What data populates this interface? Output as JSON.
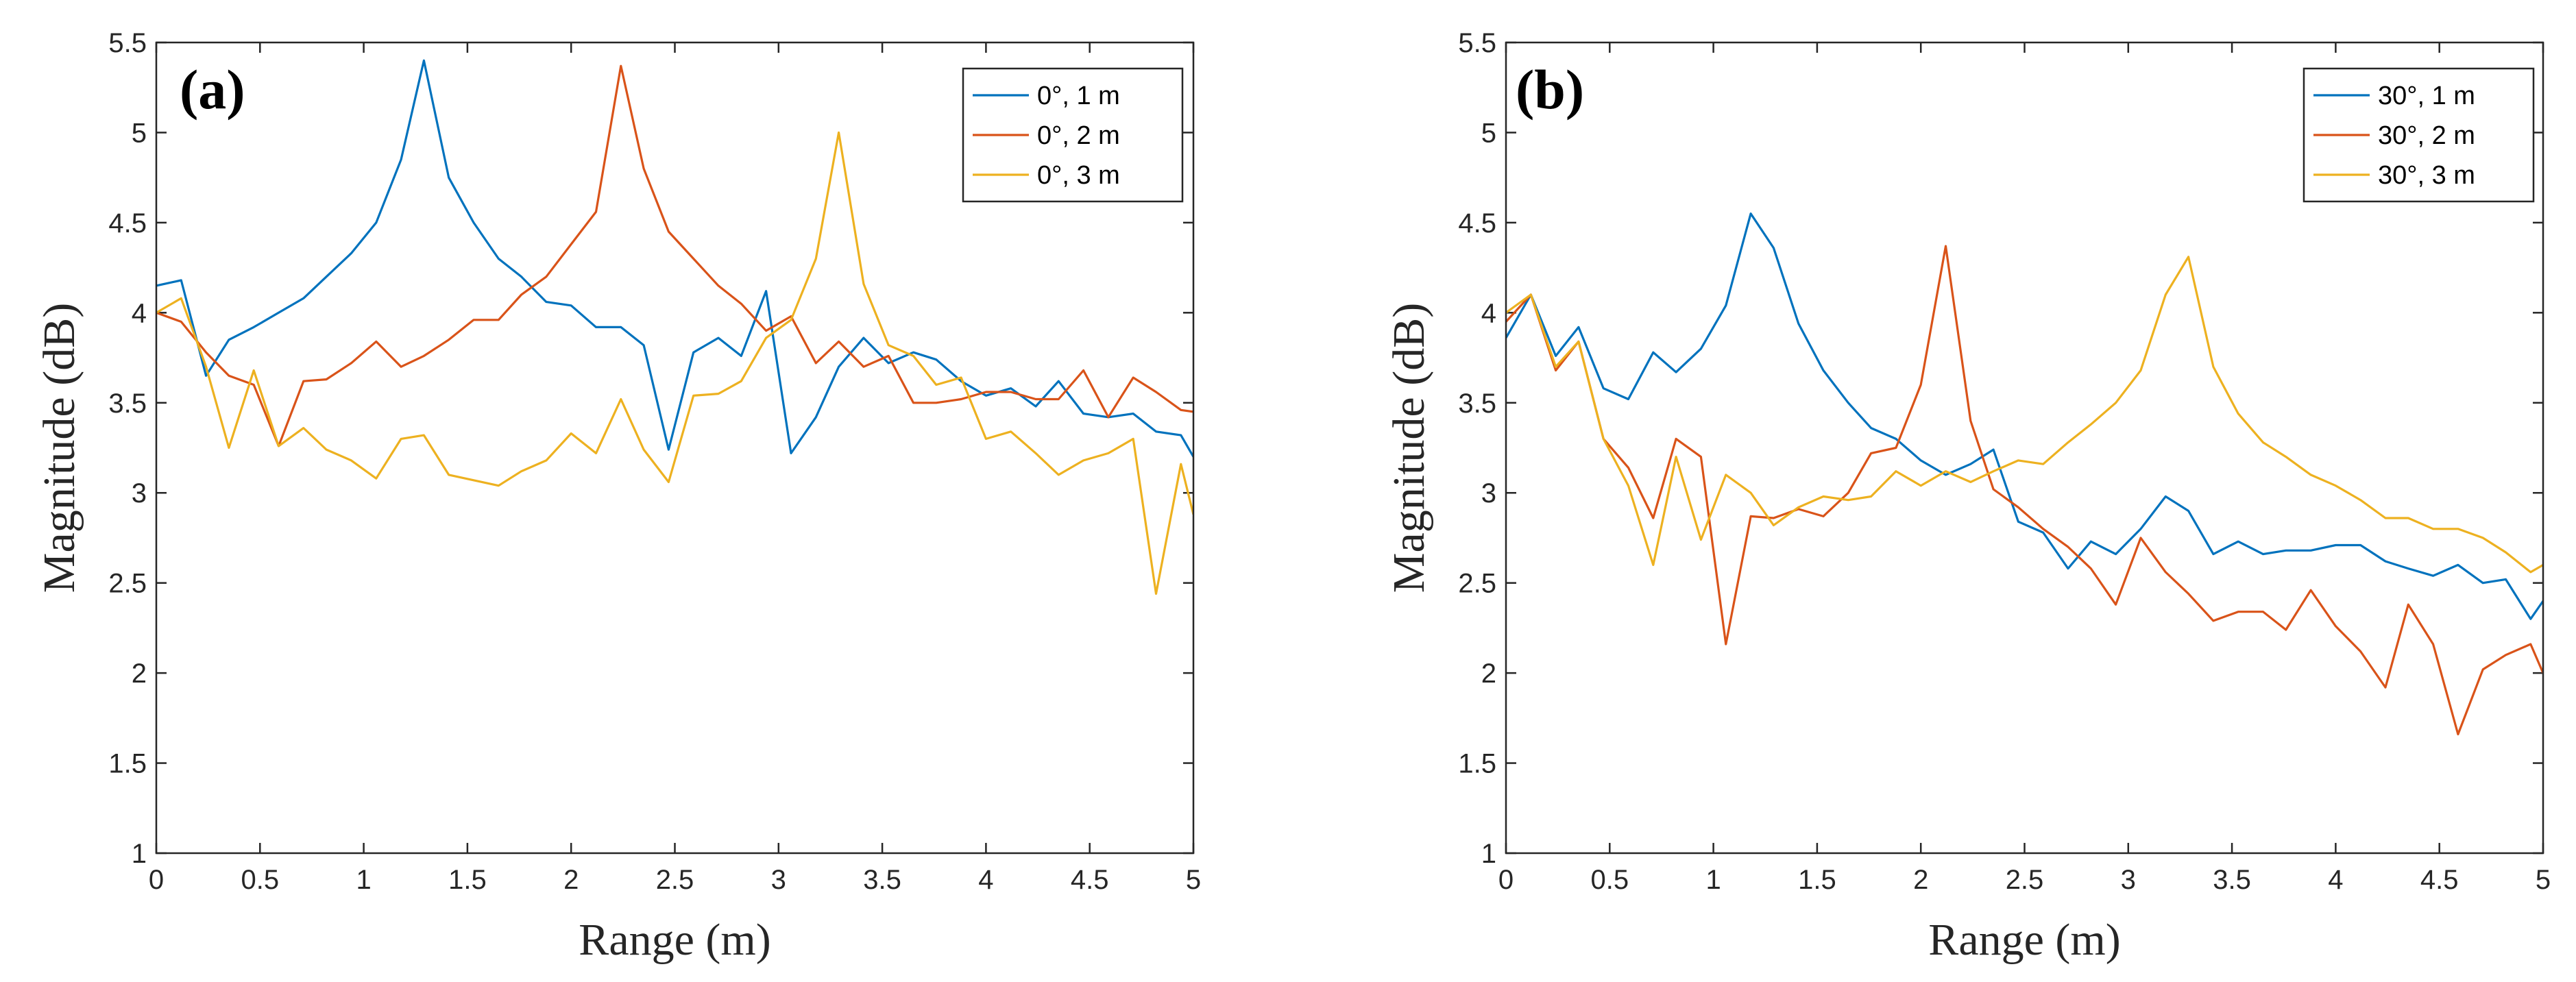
{
  "chart_data": [
    {
      "type": "line",
      "panel_label": "(a)",
      "xlabel": "Range (m)",
      "ylabel": "Magnitude (dB)",
      "xlim": [
        0,
        5
      ],
      "ylim": [
        1,
        5.5
      ],
      "xticks": [
        "0",
        "0.5",
        "1",
        "1.5",
        "2",
        "2.5",
        "3",
        "3.5",
        "4",
        "4.5",
        "5"
      ],
      "yticks": [
        "1",
        "1.5",
        "2",
        "2.5",
        "3",
        "3.5",
        "4",
        "4.5",
        "5",
        "5.5"
      ],
      "legend_position": "top-right",
      "series": [
        {
          "name": "0°, 1 m",
          "color": "#0072BD",
          "x": [
            0,
            0.12,
            0.24,
            0.35,
            0.47,
            0.59,
            0.71,
            0.82,
            0.94,
            1.06,
            1.18,
            1.29,
            1.41,
            1.53,
            1.65,
            1.76,
            1.88,
            2.0,
            2.12,
            2.24,
            2.35,
            2.47,
            2.59,
            2.71,
            2.82,
            2.94,
            3.06,
            3.18,
            3.29,
            3.41,
            3.53,
            3.65,
            3.76,
            3.88,
            4.0,
            4.12,
            4.24,
            4.35,
            4.47,
            4.59,
            4.71,
            4.82,
            4.94,
            5.0
          ],
          "y": [
            4.15,
            4.18,
            3.65,
            3.85,
            3.92,
            4.0,
            4.08,
            4.2,
            4.33,
            4.5,
            4.85,
            5.4,
            4.75,
            4.5,
            4.3,
            4.2,
            4.06,
            4.04,
            3.92,
            3.92,
            3.82,
            3.24,
            3.78,
            3.86,
            3.76,
            4.12,
            3.22,
            3.42,
            3.7,
            3.86,
            3.72,
            3.78,
            3.74,
            3.62,
            3.54,
            3.58,
            3.48,
            3.62,
            3.44,
            3.42,
            3.44,
            3.34,
            3.32,
            3.2
          ]
        },
        {
          "name": "0°, 2 m",
          "color": "#D95319",
          "x": [
            0,
            0.12,
            0.24,
            0.35,
            0.47,
            0.59,
            0.71,
            0.82,
            0.94,
            1.06,
            1.18,
            1.29,
            1.41,
            1.53,
            1.65,
            1.76,
            1.88,
            2.0,
            2.12,
            2.24,
            2.35,
            2.47,
            2.59,
            2.71,
            2.82,
            2.94,
            3.06,
            3.18,
            3.29,
            3.41,
            3.53,
            3.65,
            3.76,
            3.88,
            4.0,
            4.12,
            4.24,
            4.35,
            4.47,
            4.59,
            4.71,
            4.82,
            4.94,
            5.0
          ],
          "y": [
            4.0,
            3.95,
            3.78,
            3.65,
            3.6,
            3.26,
            3.62,
            3.63,
            3.72,
            3.84,
            3.7,
            3.76,
            3.85,
            3.96,
            3.96,
            4.1,
            4.2,
            4.38,
            4.56,
            5.37,
            4.8,
            4.45,
            4.3,
            4.15,
            4.05,
            3.9,
            3.98,
            3.72,
            3.84,
            3.7,
            3.76,
            3.5,
            3.5,
            3.52,
            3.56,
            3.56,
            3.52,
            3.52,
            3.68,
            3.42,
            3.64,
            3.56,
            3.46,
            3.45
          ]
        },
        {
          "name": "0°, 3 m",
          "color": "#EDB120",
          "x": [
            0,
            0.12,
            0.24,
            0.35,
            0.47,
            0.59,
            0.71,
            0.82,
            0.94,
            1.06,
            1.18,
            1.29,
            1.41,
            1.53,
            1.65,
            1.76,
            1.88,
            2.0,
            2.12,
            2.24,
            2.35,
            2.47,
            2.59,
            2.71,
            2.82,
            2.94,
            3.06,
            3.18,
            3.29,
            3.41,
            3.53,
            3.65,
            3.76,
            3.88,
            4.0,
            4.12,
            4.24,
            4.35,
            4.47,
            4.59,
            4.71,
            4.82,
            4.94,
            5.0
          ],
          "y": [
            4.0,
            4.08,
            3.7,
            3.25,
            3.68,
            3.26,
            3.36,
            3.24,
            3.18,
            3.08,
            3.3,
            3.32,
            3.1,
            3.07,
            3.04,
            3.12,
            3.18,
            3.33,
            3.22,
            3.52,
            3.24,
            3.06,
            3.54,
            3.55,
            3.62,
            3.86,
            3.96,
            4.3,
            5.0,
            4.16,
            3.82,
            3.76,
            3.6,
            3.64,
            3.3,
            3.34,
            3.22,
            3.1,
            3.18,
            3.22,
            3.3,
            2.44,
            3.16,
            2.88
          ]
        }
      ]
    },
    {
      "type": "line",
      "panel_label": "(b)",
      "xlabel": "Range (m)",
      "ylabel": "Magnitude (dB)",
      "xlim": [
        0,
        5
      ],
      "ylim": [
        1,
        5.5
      ],
      "xticks": [
        "0",
        "0.5",
        "1",
        "1.5",
        "2",
        "2.5",
        "3",
        "3.5",
        "4",
        "4.5",
        "5"
      ],
      "yticks": [
        "1",
        "1.5",
        "2",
        "2.5",
        "3",
        "3.5",
        "4",
        "4.5",
        "5",
        "5.5"
      ],
      "legend_position": "top-right",
      "series": [
        {
          "name": "30°, 1 m",
          "color": "#0072BD",
          "x": [
            0,
            0.12,
            0.24,
            0.35,
            0.47,
            0.59,
            0.71,
            0.82,
            0.94,
            1.06,
            1.18,
            1.29,
            1.41,
            1.53,
            1.65,
            1.76,
            1.88,
            2.0,
            2.12,
            2.24,
            2.35,
            2.47,
            2.59,
            2.71,
            2.82,
            2.94,
            3.06,
            3.18,
            3.29,
            3.41,
            3.53,
            3.65,
            3.76,
            3.88,
            4.0,
            4.12,
            4.24,
            4.35,
            4.47,
            4.59,
            4.71,
            4.82,
            4.94,
            5.0
          ],
          "y": [
            3.86,
            4.1,
            3.76,
            3.92,
            3.58,
            3.52,
            3.78,
            3.67,
            3.8,
            4.04,
            4.55,
            4.36,
            3.94,
            3.68,
            3.5,
            3.36,
            3.3,
            3.18,
            3.1,
            3.16,
            3.24,
            2.84,
            2.78,
            2.58,
            2.73,
            2.66,
            2.8,
            2.98,
            2.9,
            2.66,
            2.73,
            2.66,
            2.68,
            2.68,
            2.71,
            2.71,
            2.62,
            2.58,
            2.54,
            2.6,
            2.5,
            2.52,
            2.3,
            2.4
          ]
        },
        {
          "name": "30°, 2 m",
          "color": "#D95319",
          "x": [
            0,
            0.12,
            0.24,
            0.35,
            0.47,
            0.59,
            0.71,
            0.82,
            0.94,
            1.06,
            1.18,
            1.29,
            1.41,
            1.53,
            1.65,
            1.76,
            1.88,
            2.0,
            2.12,
            2.24,
            2.35,
            2.47,
            2.59,
            2.71,
            2.82,
            2.94,
            3.06,
            3.18,
            3.29,
            3.41,
            3.53,
            3.65,
            3.76,
            3.88,
            4.0,
            4.12,
            4.24,
            4.35,
            4.47,
            4.59,
            4.71,
            4.82,
            4.94,
            5.0
          ],
          "y": [
            3.95,
            4.1,
            3.68,
            3.84,
            3.3,
            3.14,
            2.86,
            3.3,
            3.2,
            2.16,
            2.87,
            2.86,
            2.91,
            2.87,
            3.0,
            3.22,
            3.25,
            3.6,
            4.37,
            3.4,
            3.02,
            2.92,
            2.8,
            2.7,
            2.58,
            2.38,
            2.75,
            2.56,
            2.44,
            2.29,
            2.34,
            2.34,
            2.24,
            2.46,
            2.26,
            2.12,
            1.92,
            2.38,
            2.16,
            1.66,
            2.02,
            2.1,
            2.16,
            2.0
          ]
        },
        {
          "name": "30°, 3 m",
          "color": "#EDB120",
          "x": [
            0,
            0.12,
            0.24,
            0.35,
            0.47,
            0.59,
            0.71,
            0.82,
            0.94,
            1.06,
            1.18,
            1.29,
            1.41,
            1.53,
            1.65,
            1.76,
            1.88,
            2.0,
            2.12,
            2.24,
            2.35,
            2.47,
            2.59,
            2.71,
            2.82,
            2.94,
            3.06,
            3.18,
            3.29,
            3.41,
            3.53,
            3.65,
            3.76,
            3.88,
            4.0,
            4.12,
            4.24,
            4.35,
            4.47,
            4.59,
            4.71,
            4.82,
            4.94,
            5.0
          ],
          "y": [
            4.0,
            4.1,
            3.7,
            3.84,
            3.3,
            3.04,
            2.6,
            3.2,
            2.74,
            3.1,
            3.0,
            2.82,
            2.92,
            2.98,
            2.96,
            2.98,
            3.12,
            3.04,
            3.12,
            3.06,
            3.12,
            3.18,
            3.16,
            3.28,
            3.38,
            3.5,
            3.68,
            4.1,
            4.31,
            3.7,
            3.44,
            3.28,
            3.2,
            3.1,
            3.04,
            2.96,
            2.86,
            2.86,
            2.8,
            2.8,
            2.75,
            2.67,
            2.56,
            2.6
          ]
        }
      ]
    }
  ]
}
